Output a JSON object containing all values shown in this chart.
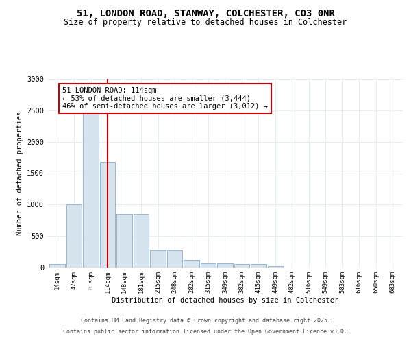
{
  "title_line1": "51, LONDON ROAD, STANWAY, COLCHESTER, CO3 0NR",
  "title_line2": "Size of property relative to detached houses in Colchester",
  "xlabel": "Distribution of detached houses by size in Colchester",
  "ylabel": "Number of detached properties",
  "categories": [
    "14sqm",
    "47sqm",
    "81sqm",
    "114sqm",
    "148sqm",
    "181sqm",
    "215sqm",
    "248sqm",
    "282sqm",
    "315sqm",
    "349sqm",
    "382sqm",
    "415sqm",
    "449sqm",
    "482sqm",
    "516sqm",
    "549sqm",
    "583sqm",
    "616sqm",
    "650sqm",
    "683sqm"
  ],
  "values": [
    50,
    1000,
    2500,
    1680,
    850,
    850,
    270,
    270,
    120,
    70,
    70,
    60,
    55,
    25,
    3,
    5,
    3,
    0,
    0,
    0,
    0
  ],
  "bar_color": "#d6e4f0",
  "bar_edge_color": "#8aabcc",
  "vline_x_index": 3,
  "vline_color": "#cc0000",
  "annotation_text": "51 LONDON ROAD: 114sqm\n← 53% of detached houses are smaller (3,444)\n46% of semi-detached houses are larger (3,012) →",
  "annotation_box_color": "#ffffff",
  "annotation_box_edge": "#cc0000",
  "ylim": [
    0,
    3000
  ],
  "yticks": [
    0,
    500,
    1000,
    1500,
    2000,
    2500,
    3000
  ],
  "footer_line1": "Contains HM Land Registry data © Crown copyright and database right 2025.",
  "footer_line2": "Contains public sector information licensed under the Open Government Licence v3.0.",
  "bg_color": "#ffffff",
  "plot_bg_color": "#ffffff",
  "grid_color": "#e8edf2"
}
